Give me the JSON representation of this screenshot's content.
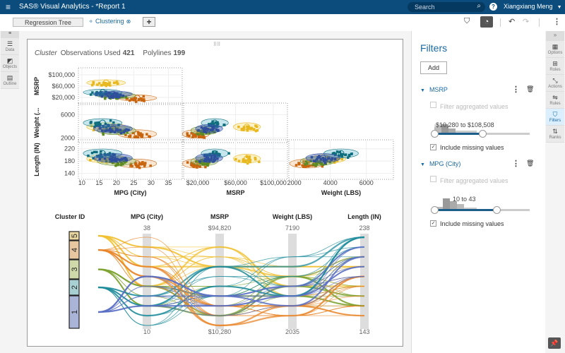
{
  "app": {
    "title": "SAS® Visual Analytics - *Report 1",
    "search_placeholder": "Search",
    "user": "Xiangxiang Meng"
  },
  "tabs": [
    {
      "label": "Regression Tree"
    },
    {
      "label": "Clustering"
    }
  ],
  "left_rail": [
    {
      "label": "Data"
    },
    {
      "label": "Objects"
    },
    {
      "label": "Outline"
    }
  ],
  "right_rail": [
    {
      "label": "Options"
    },
    {
      "label": "Roles"
    },
    {
      "label": "Actions"
    },
    {
      "label": "Rules"
    },
    {
      "label": "Filters"
    },
    {
      "label": "Ranks"
    }
  ],
  "header": {
    "object": "Cluster",
    "obs_label": "Observations Used",
    "obs": "421",
    "poly_label": "Polylines",
    "poly": "199"
  },
  "filters": {
    "title": "Filters",
    "add": "Add",
    "items": [
      {
        "name": "MSRP",
        "aggregated": "Filter aggregated values",
        "range": "$10,280 to $108,508",
        "missing": "Include missing values",
        "low": 0.0,
        "high": 0.5
      },
      {
        "name": "MPG (City)",
        "aggregated": "Filter aggregated values",
        "range": "10 to 43",
        "missing": "Include missing values",
        "low": 0.0,
        "high": 0.65
      }
    ]
  },
  "chart_data": [
    {
      "type": "scatter",
      "title": "Cluster matrix",
      "variables": [
        "MPG (City)",
        "MSRP",
        "Weight (LBS)",
        "Length (IN)"
      ],
      "row_labels": [
        "MSRP",
        "Weight (...",
        "Length (IN)"
      ],
      "col_labels": [
        "MPG (City)",
        "MSRP",
        "Weight (LBS)"
      ],
      "y_ticks": {
        "MSRP": [
          "$100,000",
          "$60,000",
          "$20,000"
        ],
        "Weight": [
          "6000",
          "2000"
        ],
        "Length": [
          "220",
          "180",
          "140"
        ]
      },
      "x_ticks": {
        "MPG (City)": [
          "10",
          "15",
          "20",
          "25",
          "30",
          "35"
        ],
        "MSRP": [
          "$20,000",
          "$60,000",
          "$100,000"
        ],
        "Weight (LBS)": [
          "2000",
          "4000",
          "6000"
        ]
      },
      "clusters": [
        {
          "id": "1",
          "color": "#2f4f9c",
          "mpg": 19,
          "msrp": 32000,
          "weight": 3600,
          "length": 190
        },
        {
          "id": "2",
          "color": "#0f6e7e",
          "mpg": 16,
          "msrp": 38000,
          "weight": 4600,
          "length": 205
        },
        {
          "id": "3",
          "color": "#5e8a22",
          "mpg": 20,
          "msrp": 27000,
          "weight": 3300,
          "length": 180
        },
        {
          "id": "4",
          "color": "#c8650e",
          "mpg": 26,
          "msrp": 18000,
          "weight": 2700,
          "length": 172
        },
        {
          "id": "5",
          "color": "#e8b820",
          "mpg": 17,
          "msrp": 72000,
          "weight": 3900,
          "length": 188
        }
      ]
    },
    {
      "type": "line",
      "title": "Parallel coordinates",
      "axes": [
        {
          "label": "MPG (City)",
          "max": "38",
          "min": "10"
        },
        {
          "label": "MSRP",
          "max": "$94,820",
          "min": "$10,280"
        },
        {
          "label": "Weight (LBS)",
          "max": "7190",
          "min": "2035"
        },
        {
          "label": "Length (IN)",
          "max": "238",
          "min": "143"
        }
      ],
      "cluster_axis": {
        "label": "Cluster ID",
        "ids": [
          "5",
          "4",
          "3",
          "2",
          "1"
        ],
        "colors": [
          "#f0c030",
          "#e8862a",
          "#7ea331",
          "#1f8c9c",
          "#5a6fc4"
        ]
      }
    }
  ]
}
